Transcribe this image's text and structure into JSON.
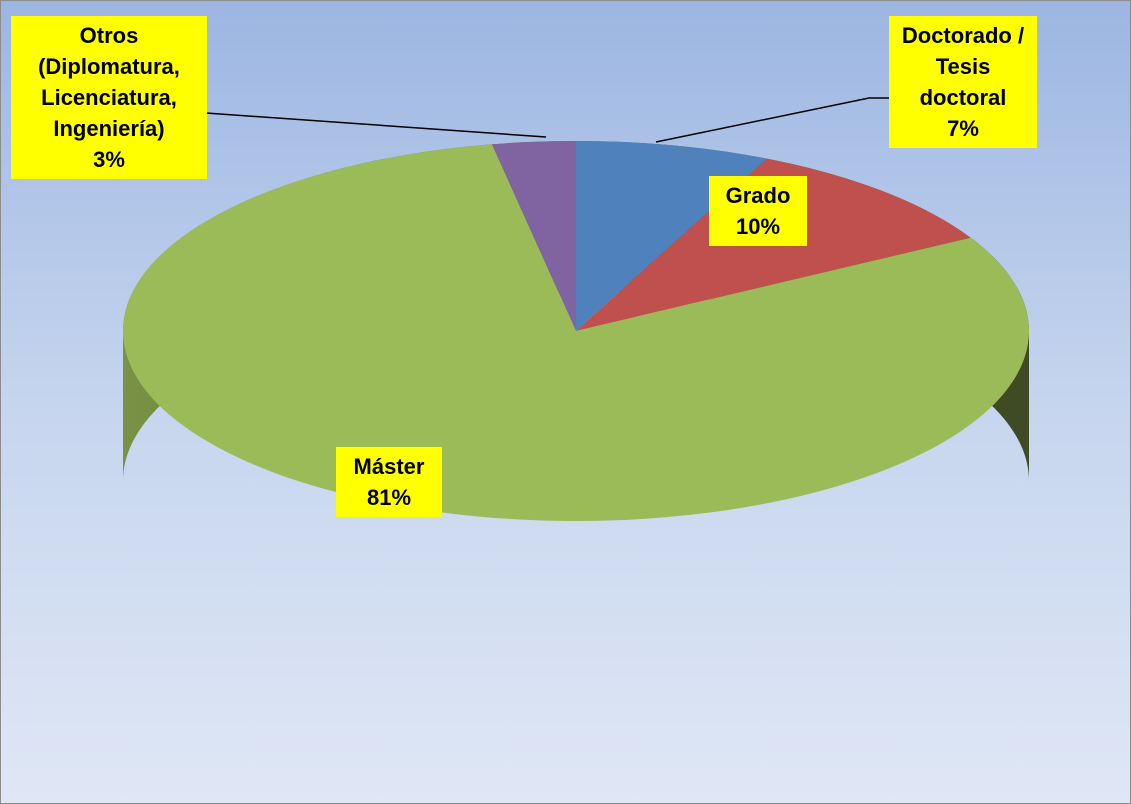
{
  "chart_data": {
    "type": "pie",
    "categories": [
      "Doctorado / Tesis doctoral",
      "Grado",
      "Máster",
      "Otros (Diplomatura, Licenciatura, Ingeniería)"
    ],
    "values": [
      7,
      10,
      81,
      3
    ],
    "value_labels": [
      "7%",
      "10%",
      "81%",
      "3%"
    ],
    "colors": [
      "#4f81bd",
      "#c0504d",
      "#9bbb59",
      "#8064a2"
    ],
    "label_background": "#ffff00"
  }
}
